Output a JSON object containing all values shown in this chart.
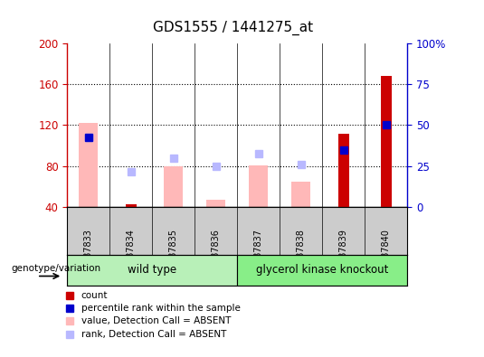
{
  "title": "GDS1555 / 1441275_at",
  "samples": [
    "GSM87833",
    "GSM87834",
    "GSM87835",
    "GSM87836",
    "GSM87837",
    "GSM87838",
    "GSM87839",
    "GSM87840"
  ],
  "ylim_left": [
    40,
    200
  ],
  "ylim_right": [
    0,
    100
  ],
  "yticks_left": [
    40,
    80,
    120,
    160,
    200
  ],
  "yticks_right": [
    0,
    25,
    50,
    75,
    100
  ],
  "ytick_labels_right": [
    "0",
    "25",
    "50",
    "75",
    "100%"
  ],
  "count_values": [
    null,
    43,
    null,
    null,
    null,
    null,
    112,
    168
  ],
  "percentile_values": [
    108,
    null,
    null,
    null,
    null,
    null,
    96,
    120
  ],
  "absent_value_bars": [
    122,
    null,
    80,
    47,
    81,
    65,
    null,
    null
  ],
  "absent_rank_dots": [
    108,
    75,
    88,
    80,
    92,
    82,
    null,
    null
  ],
  "wild_type_color": "#b8f0b8",
  "knockout_color": "#88ee88",
  "bar_color_count": "#cc0000",
  "bar_color_percentile": "#0000cc",
  "bar_color_absent_value": "#ffb8b8",
  "bar_color_absent_rank": "#b8b8ff",
  "legend_items": [
    {
      "label": "count",
      "color": "#cc0000"
    },
    {
      "label": "percentile rank within the sample",
      "color": "#0000cc"
    },
    {
      "label": "value, Detection Call = ABSENT",
      "color": "#ffb8b8"
    },
    {
      "label": "rank, Detection Call = ABSENT",
      "color": "#b8b8ff"
    }
  ],
  "genotype_label": "genotype/variation"
}
